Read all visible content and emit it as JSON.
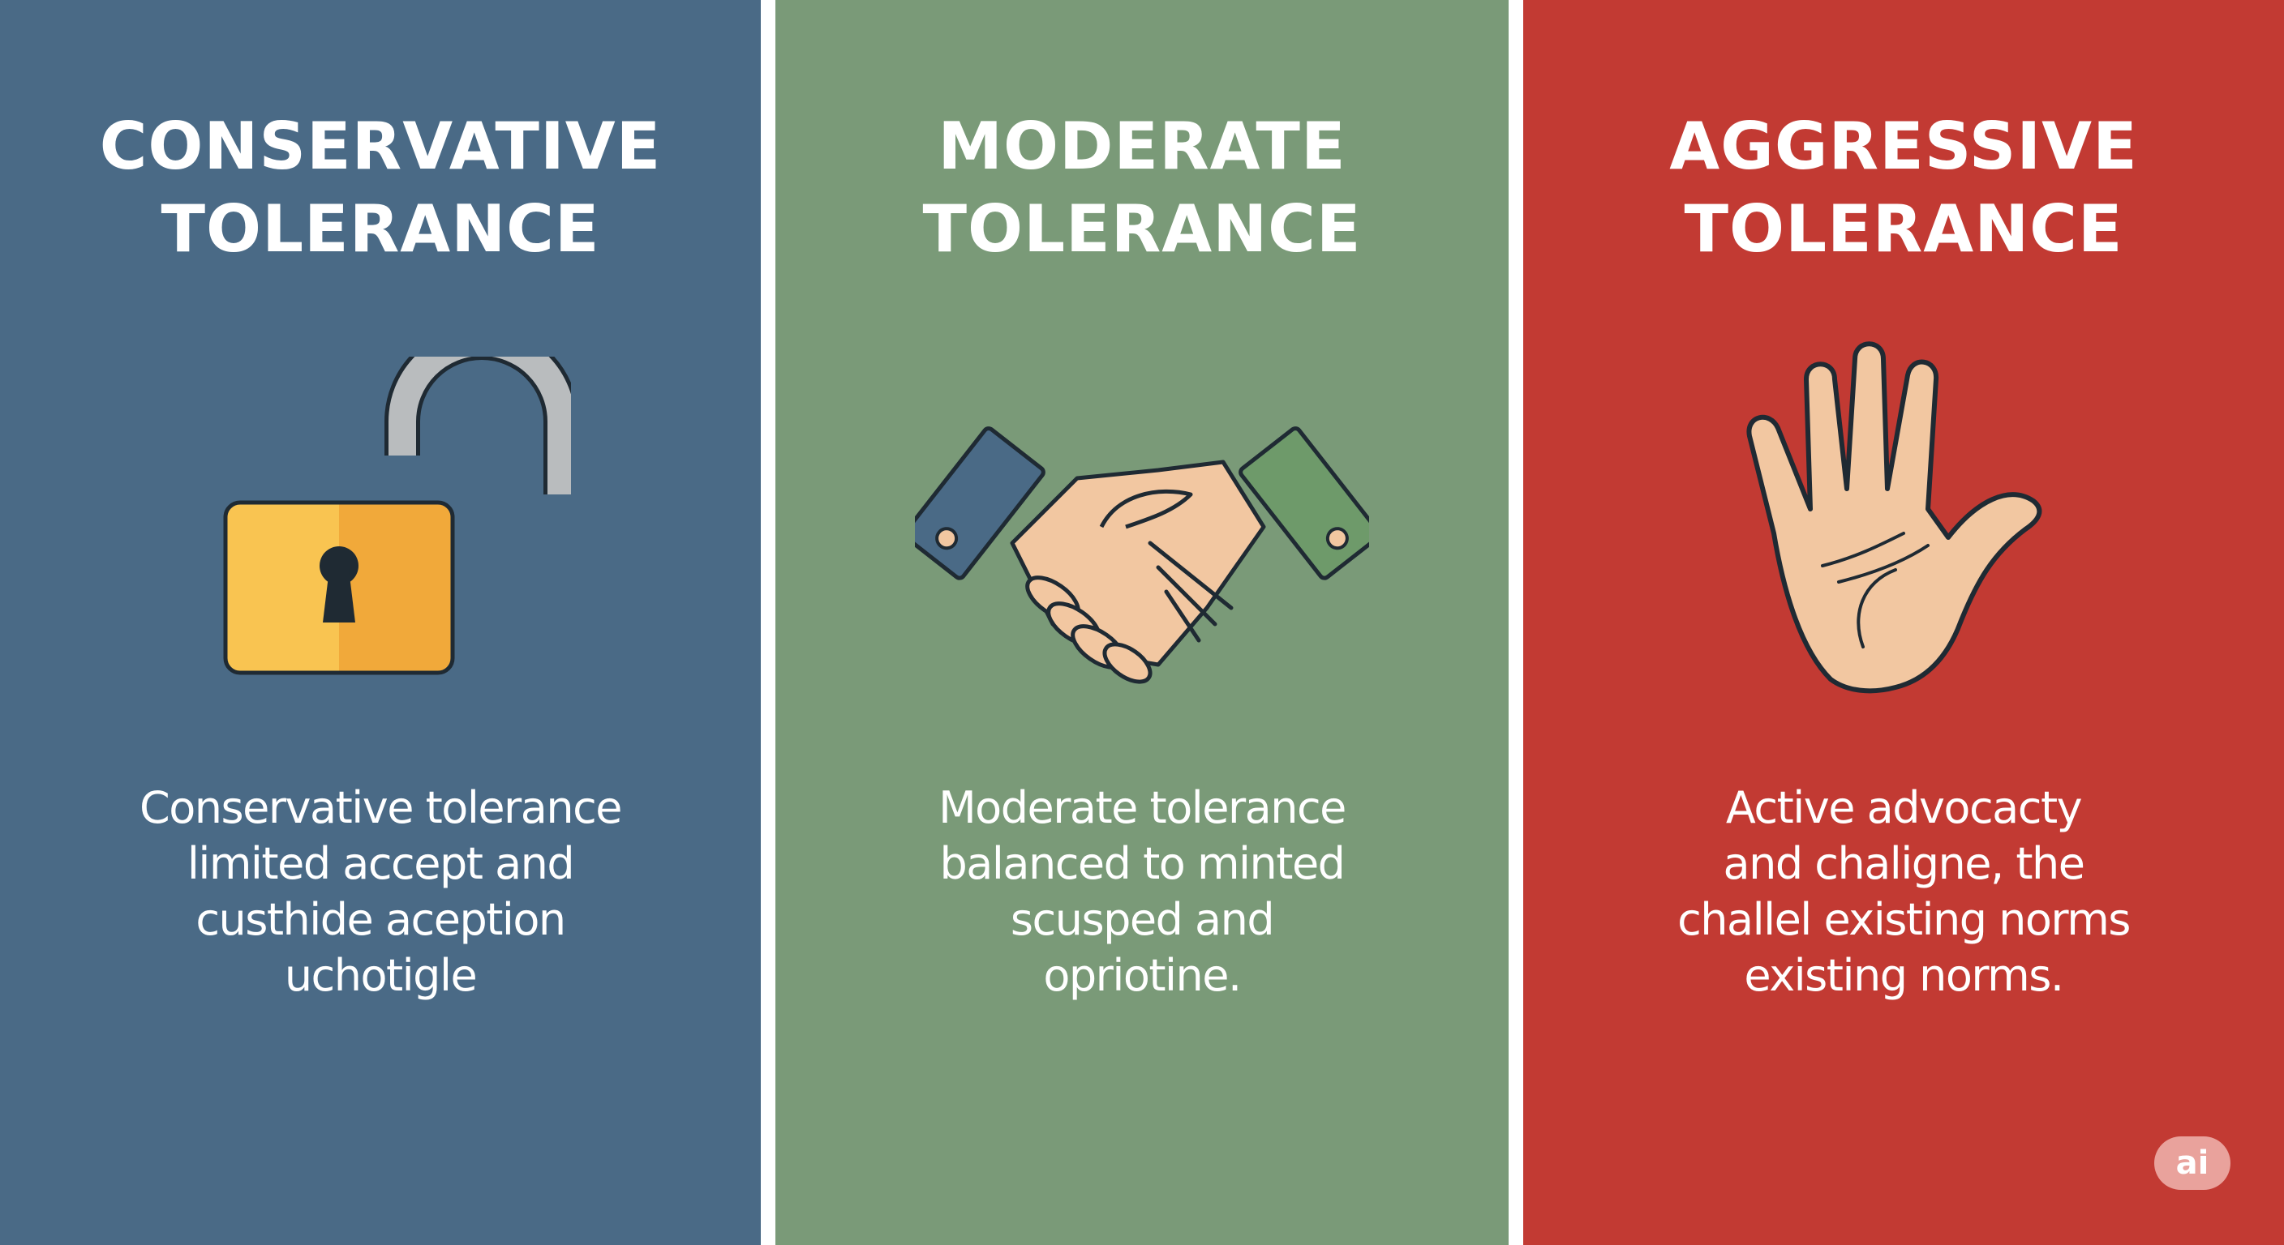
{
  "colors": {
    "conservative_bg": "#4a6a86",
    "moderate_bg": "#7a9a78",
    "aggressive_bg": "#c23a33",
    "divider": "#ffffff",
    "text": "#ffffff",
    "lock_body": "#f5b342",
    "lock_shackle": "#b9bcbe",
    "skin": "#f2c7a1",
    "cuff_left": "#4a6a86",
    "cuff_right": "#6e9a6a",
    "outline": "#1f2a33"
  },
  "panels": [
    {
      "id": "conservative",
      "title": [
        "CONSERVATIVE",
        "TOLERANCE"
      ],
      "icon": "unlocked-padlock-icon",
      "text": [
        "Conservative tolerance",
        "limited accept and",
        "custhide aception",
        "uchotigle"
      ]
    },
    {
      "id": "moderate",
      "title": [
        "MODERATE",
        "TOLERANCE"
      ],
      "icon": "handshake-icon",
      "text": [
        "Moderate tolerance",
        "balanced to minted",
        "scusped and",
        "opriotine."
      ]
    },
    {
      "id": "aggressive",
      "title": [
        "AGGRESSIVE",
        "TOLERANCE"
      ],
      "icon": "open-palm-icon",
      "text": [
        "Active advocacty",
        "and chaligne, the",
        "challel existing norms",
        "existing norms."
      ]
    }
  ],
  "badge": {
    "label": "ai"
  }
}
